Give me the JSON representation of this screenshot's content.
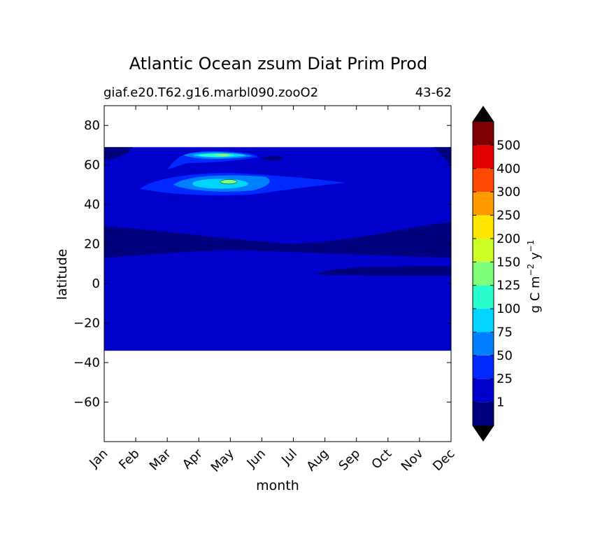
{
  "chart_data": {
    "type": "contour",
    "title": "Atlantic Ocean zsum Diat Prim Prod",
    "subtitle_left": "giaf.e20.T62.g16.marbl090.zooO2",
    "subtitle_right": "43-62",
    "xlabel": "month",
    "ylabel": "latitude",
    "x_categories": [
      "Jan",
      "Feb",
      "Mar",
      "Apr",
      "May",
      "Jun",
      "Jul",
      "Aug",
      "Sep",
      "Oct",
      "Nov",
      "Dec"
    ],
    "y_ticks": [
      80,
      60,
      40,
      20,
      0,
      -20,
      -40,
      -60
    ],
    "y_tick_labels": [
      "80",
      "60",
      "40",
      "20",
      "0",
      "−20",
      "−40",
      "−60"
    ],
    "ylim": [
      -80,
      90
    ],
    "data_lat_range": [
      -34,
      69
    ],
    "colorbar": {
      "label_base": "g C m",
      "label_exp1": "−2",
      "label_mid": " y",
      "label_exp2": "−1",
      "levels": [
        "1",
        "25",
        "50",
        "75",
        "100",
        "125",
        "150",
        "200",
        "250",
        "300",
        "400",
        "500"
      ],
      "colors": [
        "#00007f",
        "#0000cd",
        "#0029ff",
        "#0080ff",
        "#00d4ff",
        "#29ffce",
        "#7dff7a",
        "#ceff29",
        "#ffe600",
        "#ff9900",
        "#ff4800",
        "#e30000",
        "#7f0000"
      ],
      "under_color": "#000000",
      "over_color": "#000000"
    },
    "regions": [
      {
        "name": "band-25-50",
        "level": "1-25",
        "lat_range": [
          -34,
          69
        ],
        "months": [
          "Jan",
          "Dec"
        ]
      },
      {
        "name": "low-band-south-tropics",
        "level": "<1",
        "lat_range": [
          13,
          30
        ],
        "months": [
          "Jan",
          "Dec"
        ]
      },
      {
        "name": "low-band-equatorial",
        "level": "<1",
        "lat_range": [
          4,
          9
        ],
        "months": [
          "Aug",
          "Dec"
        ]
      },
      {
        "name": "bloom-50N",
        "level": "25-100",
        "lat_range": [
          45,
          55
        ],
        "months": [
          "Feb",
          "Jul"
        ]
      },
      {
        "name": "bloom-65N",
        "level": "25-125",
        "lat_range": [
          61,
          68
        ],
        "months": [
          "Apr",
          "Jun"
        ]
      }
    ]
  }
}
